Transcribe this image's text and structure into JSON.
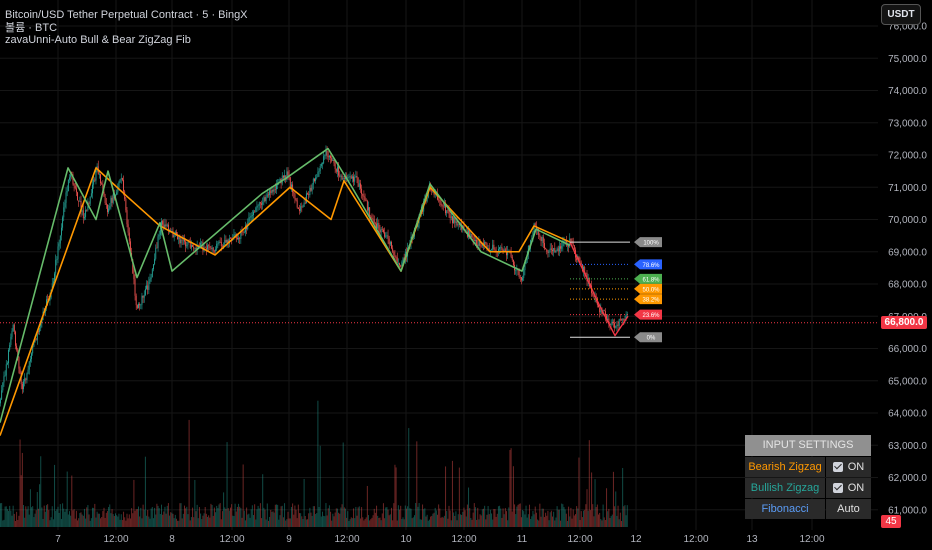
{
  "legend": {
    "line1": "Bitcoin/USD Tether Perpetual Contract · 5 · BingX",
    "line2": "볼륨 · BTC",
    "line3": "zavaUnni-Auto Bull & Bear ZigZag Fib"
  },
  "currency_button": "USDT",
  "price_axis": {
    "labels": [
      "76,000.0",
      "75,000.0",
      "74,000.0",
      "73,000.0",
      "72,000.0",
      "71,000.0",
      "70,000.0",
      "69,000.0",
      "68,000.0",
      "67,000.0",
      "66,000.0",
      "65,000.0",
      "64,000.0",
      "63,000.0",
      "62,000.0",
      "61,000.0"
    ],
    "min": 60500,
    "max": 76000,
    "current_price": "66,800.0",
    "timer": "45"
  },
  "time_axis": {
    "labels": [
      "7",
      "12:00",
      "8",
      "12:00",
      "9",
      "12:00",
      "10",
      "12:00",
      "11",
      "12:00",
      "12",
      "12:00",
      "13",
      "12:00"
    ]
  },
  "fib_labels": [
    "100%",
    "78.6%",
    "61.8%",
    "50.0%",
    "38.2%",
    "23.6%",
    "0%"
  ],
  "fib_levels": [
    69300,
    68610,
    68160,
    67850,
    67530,
    67050,
    66350
  ],
  "fib_colors": [
    "#8a8a8a",
    "#2962ff",
    "#4caf50",
    "#ff9800",
    "#ff9800",
    "#f23645",
    "#8a8a8a"
  ],
  "colors": {
    "bull": "#26a69a",
    "bear": "#ef5350",
    "bull_zigzag": "#66bb6a",
    "bear_zigzag": "#ff9800",
    "bear_trace": "#f23645"
  },
  "input_settings": {
    "title": "INPUT SETTINGS",
    "rows": [
      {
        "name": "Bearish Zigzag",
        "value": "ON",
        "color": "#ff9800"
      },
      {
        "name": "Bullish Zigzag",
        "value": "ON",
        "color": "#26a69a"
      },
      {
        "name": "Fibonacci",
        "value": "Auto",
        "color": "#5b9cf6"
      }
    ]
  },
  "chart_data": {
    "type": "candlestick",
    "xlabel": "",
    "ylabel": "",
    "ylim": [
      60500,
      76000
    ],
    "series": [
      {
        "points": [
          [
            0,
            64300
          ],
          [
            13,
            66700
          ],
          [
            22,
            64700
          ],
          [
            40,
            66800
          ],
          [
            52,
            67900
          ],
          [
            70,
            71500
          ],
          [
            84,
            70000
          ],
          [
            97,
            71600
          ],
          [
            107,
            70300
          ],
          [
            122,
            71300
          ],
          [
            137,
            67200
          ],
          [
            150,
            68100
          ],
          [
            161,
            69900
          ],
          [
            182,
            69300
          ],
          [
            210,
            69100
          ],
          [
            240,
            69500
          ],
          [
            262,
            70600
          ],
          [
            287,
            71400
          ],
          [
            299,
            70200
          ],
          [
            327,
            72100
          ],
          [
            344,
            71200
          ],
          [
            356,
            71300
          ],
          [
            372,
            70000
          ],
          [
            388,
            69400
          ],
          [
            401,
            68500
          ],
          [
            430,
            71000
          ],
          [
            452,
            70000
          ],
          [
            482,
            69200
          ],
          [
            508,
            69000
          ],
          [
            521,
            68100
          ],
          [
            534,
            69800
          ],
          [
            548,
            69000
          ],
          [
            570,
            69300
          ],
          [
            585,
            68300
          ],
          [
            600,
            67200
          ],
          [
            614,
            66700
          ],
          [
            628,
            67100
          ]
        ]
      },
      {
        "name_unused": "",
        "points": []
      }
    ],
    "bull_zigzag": [
      [
        0,
        63700
      ],
      [
        68,
        71600
      ],
      [
        96,
        70000
      ],
      [
        108,
        71500
      ],
      [
        137,
        68200
      ],
      [
        160,
        69900
      ],
      [
        172,
        68400
      ],
      [
        262,
        70800
      ],
      [
        287,
        71300
      ],
      [
        328,
        72200
      ],
      [
        352,
        71000
      ],
      [
        401,
        68400
      ],
      [
        430,
        71100
      ],
      [
        481,
        69000
      ],
      [
        522,
        68400
      ],
      [
        536,
        69700
      ],
      [
        570,
        69200
      ]
    ],
    "bear_zigzag": [
      [
        0,
        63300
      ],
      [
        52,
        67800
      ],
      [
        96,
        71600
      ],
      [
        124,
        70800
      ],
      [
        160,
        69800
      ],
      [
        215,
        68900
      ],
      [
        290,
        71000
      ],
      [
        331,
        70000
      ],
      [
        344,
        71200
      ],
      [
        401,
        68400
      ],
      [
        430,
        71000
      ],
      [
        490,
        69000
      ],
      [
        519,
        69000
      ],
      [
        534,
        69800
      ],
      [
        570,
        69300
      ]
    ],
    "bear_trace": [
      [
        570,
        69300
      ],
      [
        585,
        68300
      ],
      [
        600,
        67300
      ],
      [
        615,
        66400
      ],
      [
        628,
        67000
      ]
    ]
  }
}
